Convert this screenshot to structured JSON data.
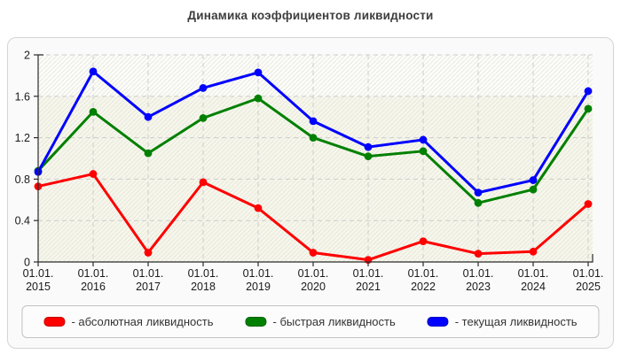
{
  "title": "Динамика коэффициентов ликвидности",
  "colors": {
    "red": "#ff0000",
    "green": "#008000",
    "blue": "#0000ff",
    "grid": "#cccccc",
    "axis": "#2b2b2b",
    "plot_bg_top": "#fdfdf8",
    "plot_band": "#f7f7e9",
    "hatch": "#e3e3e3",
    "panel_bg": "#fafafa",
    "panel_border": "#d4d4d4",
    "legend_border": "#c2c2c2",
    "tick_text": "#1a1a1a",
    "title_text": "#3d3d3d"
  },
  "chart_data": {
    "type": "line",
    "title": "Динамика коэффициентов ликвидности",
    "categories": [
      "01.01.2015",
      "01.01.2016",
      "01.01.2017",
      "01.01.2018",
      "01.01.2019",
      "01.01.2020",
      "01.01.2021",
      "01.01.2022",
      "01.01.2023",
      "01.01.2024",
      "01.01.2025"
    ],
    "x_tick_line1": "01.01.",
    "x_tick_years": [
      "2015",
      "2016",
      "2017",
      "2018",
      "2019",
      "2020",
      "2021",
      "2022",
      "2023",
      "2024",
      "2025"
    ],
    "series": [
      {
        "name": "абсолютная ликвидность",
        "color": "#ff0000",
        "values": [
          0.73,
          0.85,
          0.09,
          0.77,
          0.52,
          0.09,
          0.02,
          0.2,
          0.08,
          0.1,
          0.56
        ]
      },
      {
        "name": "быстрая ликвидность",
        "color": "#008000",
        "values": [
          0.88,
          1.45,
          1.05,
          1.39,
          1.58,
          1.2,
          1.02,
          1.07,
          0.57,
          0.7,
          1.48
        ]
      },
      {
        "name": "текущая ликвидность",
        "color": "#0000ff",
        "values": [
          0.87,
          1.84,
          1.4,
          1.68,
          1.83,
          1.36,
          1.11,
          1.18,
          0.67,
          0.79,
          1.65
        ]
      }
    ],
    "xlabel": "",
    "ylabel": "",
    "ylim": [
      0,
      2
    ],
    "yticks": [
      0,
      0.4,
      0.8,
      1.2,
      1.6,
      2
    ],
    "ytick_labels": [
      "0",
      "0.4",
      "0.8",
      "1.2",
      "1.6",
      "2"
    ],
    "grid": true,
    "legend_position": "bottom",
    "legend_items": [
      {
        "label": "- абсолютная ликвидность",
        "color": "#ff0000"
      },
      {
        "label": "- быстрая ликвидность",
        "color": "#008000"
      },
      {
        "label": "- текущая ликвидность",
        "color": "#0000ff"
      }
    ]
  }
}
